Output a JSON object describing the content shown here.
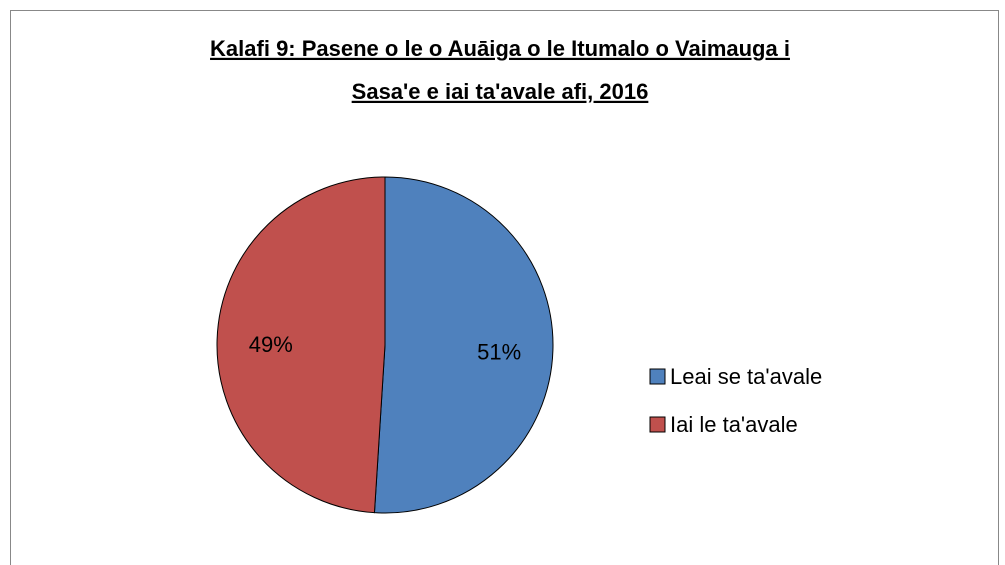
{
  "chart_data": {
    "type": "pie",
    "title": [
      "Kalafi 9: Pasene o le o Auāiga o le Itumalo o Vaimauga i",
      "Sasa'e e iai ta'avale afi, 2016"
    ],
    "categories": [
      "Leai se ta'avale",
      "Iai le ta'avale"
    ],
    "values": [
      51,
      49
    ],
    "value_labels": [
      "51%",
      "49%"
    ],
    "colors": [
      "#4f81bd",
      "#c0504d"
    ],
    "legend": "right"
  }
}
